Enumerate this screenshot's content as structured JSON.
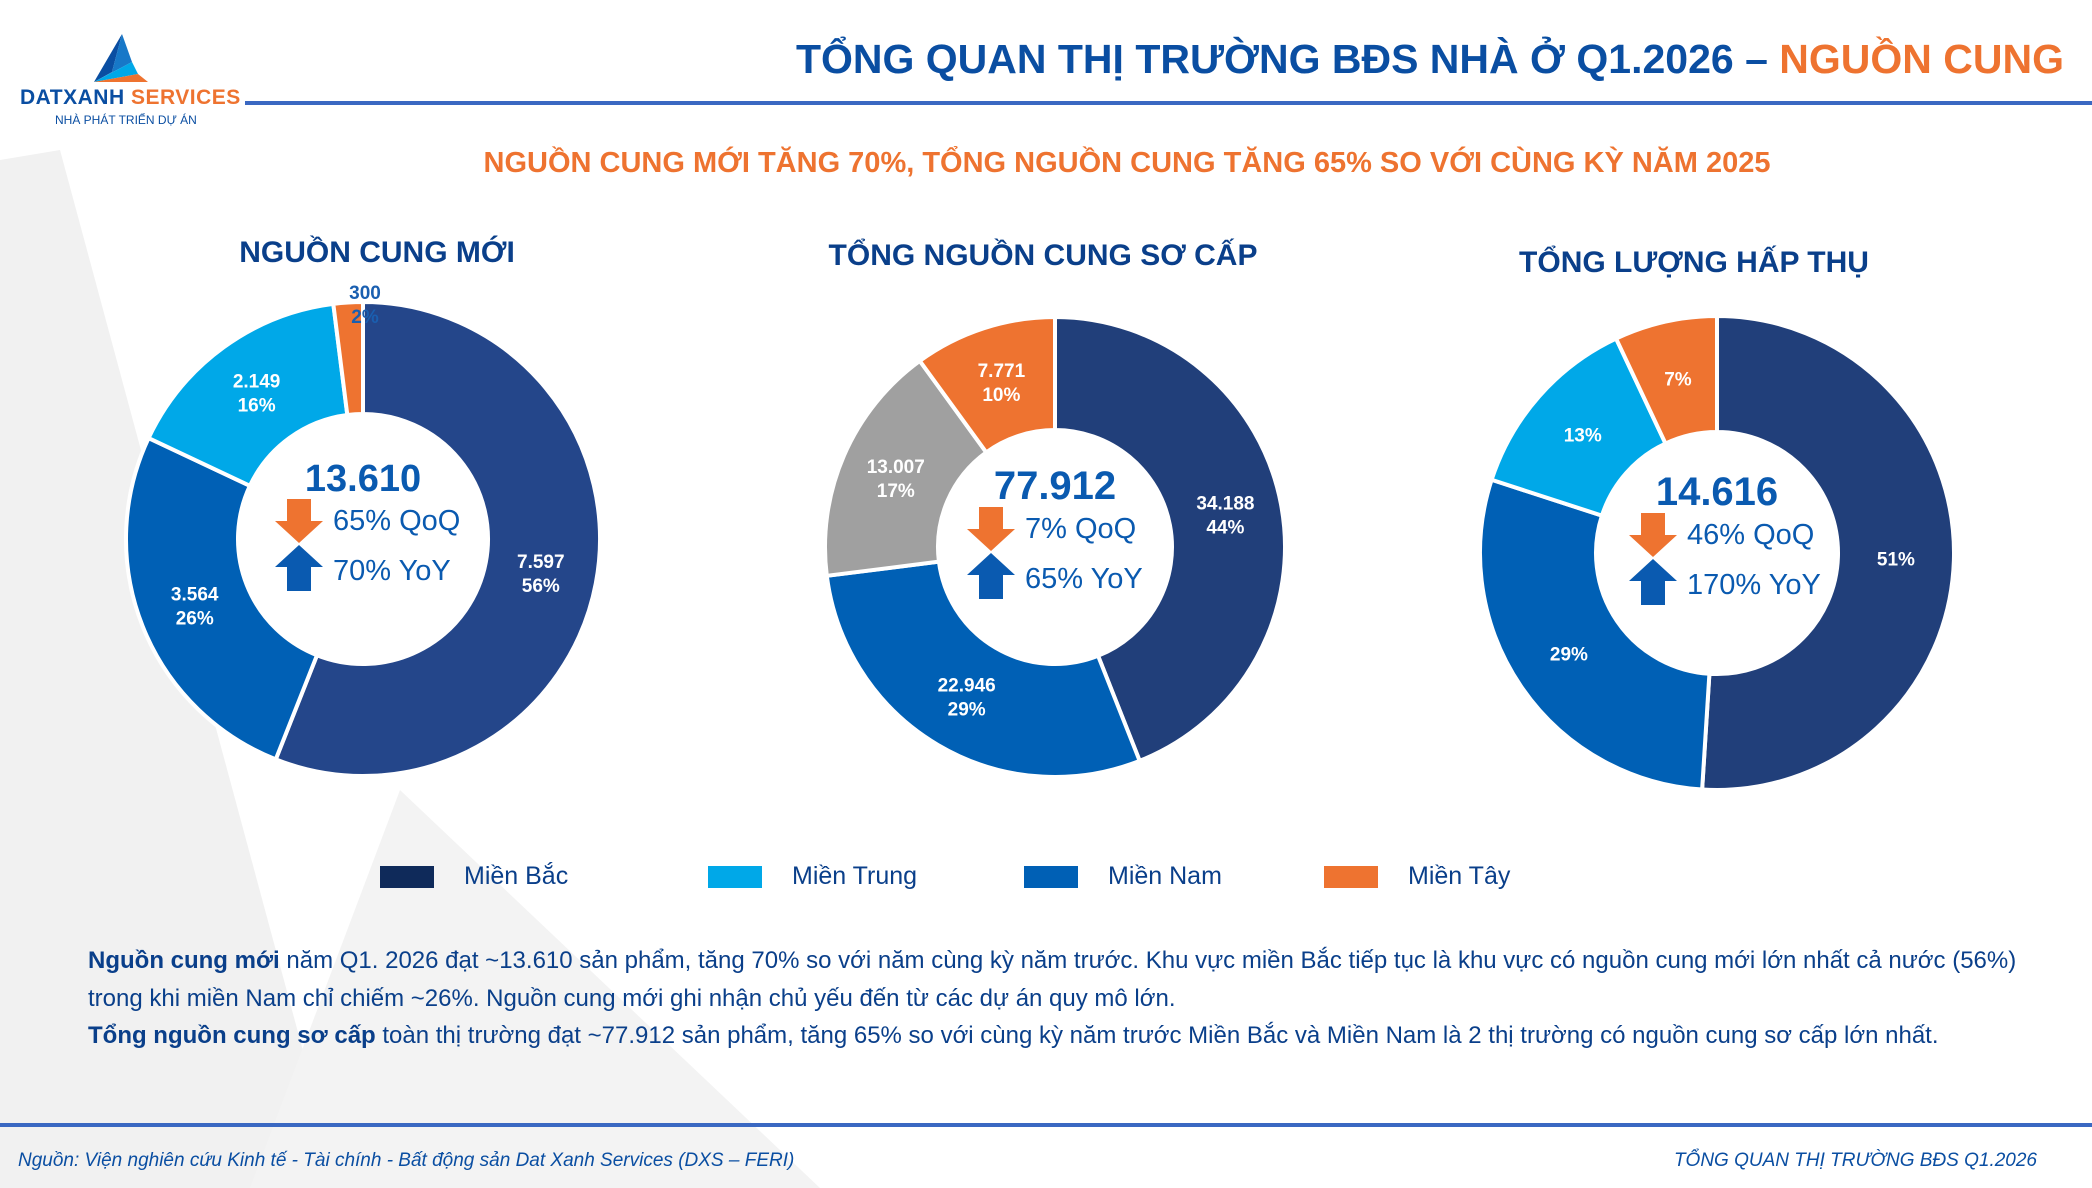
{
  "logo": {
    "brand_a": "DATXANH",
    "brand_b": "SERVICES",
    "tagline": "NHÀ PHÁT TRIỂN DỰ ÁN"
  },
  "header": {
    "title_main": "TỔNG QUAN THỊ TRƯỜNG BĐS NHÀ Ở Q1.2026 – ",
    "title_highlight": "NGUỒN CUNG"
  },
  "subtitle": "NGUỒN CUNG MỚI TĂNG 70%, TỔNG NGUỒN CUNG TĂNG 65% SO VỚI CÙNG KỲ NĂM 2025",
  "colors": {
    "bac": "#213f7a",
    "bac_legend": "#0f2a5a",
    "trung": "#00a8e8",
    "nam": "#0060b5",
    "tay": "#ee7330",
    "grey": "#a0a0a0",
    "text": "#0a4ea2"
  },
  "legend": [
    {
      "label": "Miền Bắc",
      "color": "#0f2a5a"
    },
    {
      "label": "Miền Trung",
      "color": "#00a8e8"
    },
    {
      "label": "Miền Nam",
      "color": "#0060b5"
    },
    {
      "label": "Miền Tây",
      "color": "#ee7330"
    }
  ],
  "chart_data": [
    {
      "type": "pie",
      "title": "NGUỒN CUNG MỚI",
      "total": "13.610",
      "qoq": "65% QoQ",
      "yoy": "70% YoY",
      "segments": [
        {
          "region": "Miền Bắc",
          "value": 7597,
          "value_label": "7.597",
          "percent": 56,
          "percent_label": "56%",
          "color": "#24468a"
        },
        {
          "region": "Miền Nam",
          "value": 3564,
          "value_label": "3.564",
          "percent": 26,
          "percent_label": "26%",
          "color": "#0060b5"
        },
        {
          "region": "Miền Trung",
          "value": 2149,
          "value_label": "2.149",
          "percent": 16,
          "percent_label": "16%",
          "color": "#00a8e8"
        },
        {
          "region": "Miền Tây",
          "value": 300,
          "value_label": "300",
          "percent": 2,
          "percent_label": "2%",
          "color": "#ee7330"
        }
      ]
    },
    {
      "type": "pie",
      "title": "TỔNG NGUỒN CUNG SƠ CẤP",
      "total": "77.912",
      "qoq": "7% QoQ",
      "yoy": "65% YoY",
      "segments": [
        {
          "region": "Miền Bắc",
          "value": 34188,
          "value_label": "34.188",
          "percent": 44,
          "percent_label": "44%",
          "color": "#213f7a"
        },
        {
          "region": "Miền Nam",
          "value": 22946,
          "value_label": "22.946",
          "percent": 29,
          "percent_label": "29%",
          "color": "#0060b5"
        },
        {
          "region": "Miền Trung",
          "value": 13007,
          "value_label": "13.007",
          "percent": 17,
          "percent_label": "17%",
          "color": "#a0a0a0"
        },
        {
          "region": "Miền Tây",
          "value": 7771,
          "value_label": "7.771",
          "percent": 10,
          "percent_label": "10%",
          "color": "#ee7330"
        }
      ]
    },
    {
      "type": "pie",
      "title": "TỔNG LƯỢNG HẤP THỤ",
      "total": "14.616",
      "qoq": "46% QoQ",
      "yoy": "170% YoY",
      "segments": [
        {
          "region": "Miền Bắc",
          "percent": 51,
          "percent_label": "51%",
          "color": "#213f7a"
        },
        {
          "region": "Miền Nam",
          "percent": 29,
          "percent_label": "29%",
          "color": "#0060b5"
        },
        {
          "region": "Miền Trung",
          "percent": 13,
          "percent_label": "13%",
          "color": "#00a8e8"
        },
        {
          "region": "Miền Tây",
          "percent": 7,
          "percent_label": "7%",
          "color": "#ee7330"
        }
      ]
    }
  ],
  "body": {
    "p1_bold": "Nguồn cung mới",
    "p1_text": " năm Q1. 2026 đạt ~13.610 sản phẩm, tăng 70% so với năm cùng kỳ năm trước. Khu vực miền Bắc tiếp tục là khu vực có nguồn cung mới lớn nhất cả nước (56%) trong khi miền Nam chỉ chiếm ~26%. Nguồn cung mới ghi nhận chủ yếu đến từ các dự án quy mô lớn.",
    "p2_bold": "Tổng nguồn cung sơ cấp",
    "p2_text": " toàn thị trường đạt ~77.912 sản phẩm, tăng 65% so với cùng kỳ năm trước Miền Bắc và Miền Nam là 2 thị trường có nguồn cung sơ cấp lớn nhất."
  },
  "footer": {
    "source": "Nguồn: Viện nghiên cứu Kinh tế - Tài chính - Bất động sản Dat Xanh Services (DXS – FERI)",
    "right": "TỔNG QUAN THỊ TRƯỜNG BĐS Q1.2026"
  }
}
